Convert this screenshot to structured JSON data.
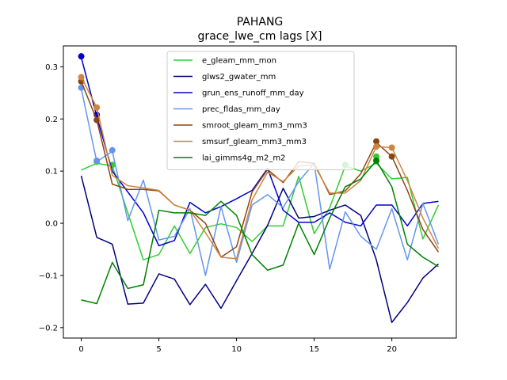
{
  "chart_data": {
    "type": "line",
    "title": "PAHANG",
    "subtitle": "grace_lwe_cm lags [X]",
    "xlabel": "",
    "ylabel": "",
    "xlim": [
      -1.15,
      24.15
    ],
    "ylim": [
      -0.22,
      0.34
    ],
    "xticks": [
      0,
      5,
      10,
      15,
      20
    ],
    "yticks": [
      -0.2,
      -0.1,
      0.0,
      0.1,
      0.2,
      0.3
    ],
    "xtick_labels": [
      "0",
      "5",
      "10",
      "15",
      "20"
    ],
    "ytick_labels": [
      "−0.2",
      "−0.1",
      "0.0",
      "0.1",
      "0.2",
      "0.3"
    ],
    "legend_position": "top-center",
    "x": [
      0,
      1,
      2,
      3,
      4,
      5,
      6,
      7,
      8,
      9,
      10,
      11,
      12,
      13,
      14,
      15,
      16,
      17,
      18,
      19,
      20,
      21,
      22,
      23
    ],
    "series": [
      {
        "name": "e_gleam_mm_mon",
        "color": "#32cd32",
        "values": [
          0.102,
          0.115,
          0.11,
          0.02,
          -0.07,
          -0.06,
          -0.005,
          -0.058,
          -0.008,
          -0.001,
          -0.008,
          -0.035,
          -0.005,
          -0.005,
          0.09,
          -0.02,
          0.03,
          0.11,
          0.1,
          0.115,
          0.085,
          0.088,
          -0.03,
          0.035
        ],
        "markers": [
          1,
          2,
          17,
          19
        ],
        "marker_values": [
          0.118,
          0.112,
          0.112,
          0.128
        ]
      },
      {
        "name": "glws2_gwater_mm",
        "color": "#000080",
        "values": [
          0.091,
          -0.027,
          -0.04,
          -0.155,
          -0.153,
          -0.097,
          -0.107,
          -0.156,
          -0.117,
          -0.163,
          -0.11,
          -0.058,
          -0.004,
          0.067,
          0.01,
          0.013,
          0.025,
          0.035,
          0.015,
          -0.07,
          -0.19,
          -0.152,
          -0.105,
          -0.078
        ],
        "markers": [],
        "marker_values": []
      },
      {
        "name": "grun_ens_runoff_mm_day",
        "color": "#0000cd",
        "values": [
          0.318,
          0.205,
          0.1,
          0.06,
          0.02,
          -0.043,
          -0.033,
          0.04,
          0.02,
          0.032,
          0.047,
          0.063,
          0.105,
          0.025,
          0.002,
          0.002,
          0.02,
          0.002,
          -0.005,
          0.035,
          0.035,
          -0.005,
          0.038,
          0.042
        ],
        "markers": [
          0,
          1
        ],
        "marker_values": [
          0.32,
          0.208
        ]
      },
      {
        "name": "prec_fldas_mm_day",
        "color": "#6495ed",
        "values": [
          0.258,
          0.118,
          0.138,
          0.005,
          0.083,
          -0.032,
          -0.025,
          0.028,
          -0.1,
          0.032,
          -0.075,
          0.035,
          0.055,
          0.03,
          0.08,
          0.115,
          -0.088,
          0.022,
          -0.025,
          -0.05,
          0.028,
          -0.07,
          0.038,
          -0.04
        ],
        "markers": [
          0,
          1,
          2
        ],
        "marker_values": [
          0.26,
          0.12,
          0.14
        ]
      },
      {
        "name": "smroot_gleam_mm3_mm3",
        "color": "#8b4513",
        "values": [
          0.272,
          0.198,
          0.075,
          0.065,
          0.065,
          0.062,
          0.035,
          0.025,
          0.0,
          -0.065,
          -0.045,
          0.06,
          0.103,
          0.078,
          0.118,
          0.115,
          0.055,
          0.062,
          0.095,
          0.155,
          0.128,
          0.063,
          -0.012,
          -0.055
        ],
        "markers": [
          0,
          1,
          19,
          20
        ],
        "marker_values": [
          0.272,
          0.198,
          0.157,
          0.128
        ]
      },
      {
        "name": "smsurf_gleam_mm3_mm3",
        "color": "#cd853f",
        "values": [
          0.28,
          0.222,
          0.092,
          0.072,
          0.068,
          0.063,
          0.035,
          0.025,
          -0.018,
          -0.065,
          -0.068,
          0.045,
          0.098,
          0.08,
          0.11,
          0.112,
          0.058,
          0.058,
          0.082,
          0.147,
          0.145,
          0.082,
          0.01,
          -0.048
        ],
        "markers": [
          0,
          1,
          19,
          20
        ],
        "marker_values": [
          0.28,
          0.222,
          0.147,
          0.145
        ]
      },
      {
        "name": "lai_gimms4g_m2_m2",
        "color": "#008000",
        "values": [
          -0.147,
          -0.154,
          -0.075,
          -0.125,
          -0.118,
          0.025,
          0.02,
          0.02,
          0.015,
          0.042,
          0.015,
          -0.06,
          -0.09,
          -0.08,
          0.0,
          -0.06,
          0.01,
          0.07,
          0.085,
          0.12,
          0.07,
          -0.04,
          -0.065,
          -0.083
        ],
        "markers": [
          19
        ],
        "marker_values": [
          0.12
        ]
      }
    ]
  }
}
